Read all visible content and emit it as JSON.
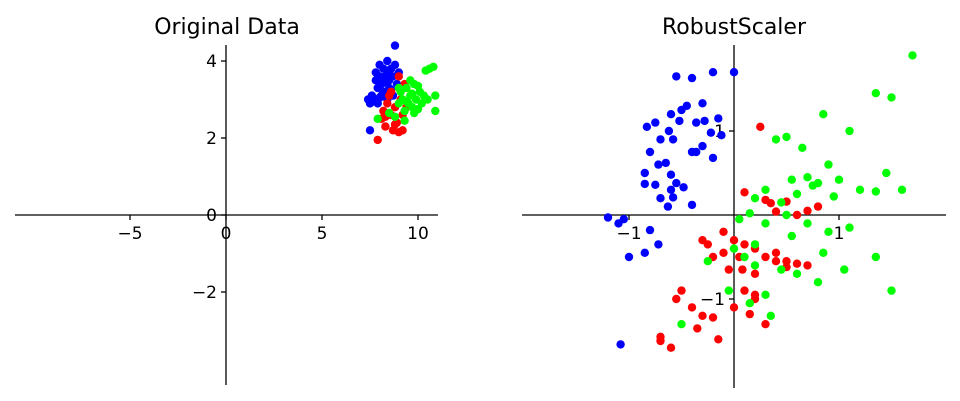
{
  "chart_data": [
    {
      "type": "scatter",
      "title": "Original Data",
      "xlabel": "",
      "ylabel": "",
      "xlim": [
        -10,
        12
      ],
      "ylim": [
        -3.5,
        5.5
      ],
      "xticks": [
        -5,
        0,
        5,
        10
      ],
      "yticks": [
        -2,
        0,
        2,
        4
      ],
      "xtick_labels": [
        "−5",
        "0",
        "5",
        "10"
      ],
      "ytick_labels": [
        "−2",
        "0",
        "2",
        "4"
      ],
      "grid": false,
      "spines": "centered",
      "series": [
        {
          "color": "#0000ff",
          "points": [
            [
              7.4,
              3.0
            ],
            [
              7.5,
              2.9
            ],
            [
              7.6,
              3.1
            ],
            [
              7.8,
              3.7
            ],
            [
              7.8,
              3.5
            ],
            [
              7.9,
              3.3
            ],
            [
              8.0,
              3.6
            ],
            [
              8.0,
              3.9
            ],
            [
              8.1,
              3.4
            ],
            [
              8.1,
              3.1
            ],
            [
              8.2,
              3.8
            ],
            [
              8.2,
              3.2
            ],
            [
              8.3,
              3.6
            ],
            [
              8.4,
              3.0
            ],
            [
              8.4,
              4.0
            ],
            [
              8.5,
              3.5
            ],
            [
              8.5,
              3.3
            ],
            [
              8.6,
              3.8
            ],
            [
              8.7,
              3.1
            ],
            [
              8.7,
              3.6
            ],
            [
              8.8,
              4.4
            ],
            [
              8.8,
              3.9
            ],
            [
              8.9,
              3.4
            ],
            [
              9.0,
              3.7
            ],
            [
              7.5,
              2.2
            ],
            [
              7.7,
              2.95
            ],
            [
              8.0,
              3.05
            ],
            [
              8.3,
              3.45
            ],
            [
              8.6,
              3.25
            ],
            [
              7.9,
              2.9
            ],
            [
              8.2,
              3.55
            ],
            [
              8.45,
              3.75
            ]
          ]
        },
        {
          "color": "#ff0000",
          "points": [
            [
              7.9,
              1.95
            ],
            [
              8.1,
              2.5
            ],
            [
              8.2,
              2.7
            ],
            [
              8.3,
              2.3
            ],
            [
              8.4,
              2.9
            ],
            [
              8.5,
              3.1
            ],
            [
              8.6,
              2.6
            ],
            [
              8.7,
              2.2
            ],
            [
              8.8,
              2.8
            ],
            [
              8.9,
              2.4
            ],
            [
              9.0,
              2.15
            ],
            [
              9.1,
              3.0
            ],
            [
              9.2,
              2.6
            ],
            [
              9.3,
              3.4
            ],
            [
              9.4,
              2.8
            ],
            [
              8.6,
              3.2
            ],
            [
              9.0,
              3.6
            ],
            [
              8.3,
              2.55
            ],
            [
              8.8,
              2.35
            ],
            [
              9.2,
              2.2
            ]
          ]
        },
        {
          "color": "#00ff00",
          "points": [
            [
              7.9,
              2.5
            ],
            [
              8.5,
              2.65
            ],
            [
              8.8,
              2.55
            ],
            [
              9.0,
              2.9
            ],
            [
              9.1,
              3.2
            ],
            [
              9.2,
              3.0
            ],
            [
              9.3,
              2.7
            ],
            [
              9.4,
              3.3
            ],
            [
              9.5,
              2.9
            ],
            [
              9.6,
              3.1
            ],
            [
              9.7,
              2.8
            ],
            [
              9.8,
              3.4
            ],
            [
              9.9,
              3.0
            ],
            [
              10.0,
              2.75
            ],
            [
              10.1,
              3.2
            ],
            [
              10.2,
              2.9
            ],
            [
              10.3,
              3.1
            ],
            [
              10.4,
              3.75
            ],
            [
              10.6,
              3.8
            ],
            [
              10.8,
              3.85
            ],
            [
              10.9,
              3.1
            ],
            [
              10.9,
              2.7
            ],
            [
              9.3,
              2.45
            ],
            [
              9.6,
              3.5
            ],
            [
              9.8,
              2.65
            ],
            [
              10.5,
              3.0
            ],
            [
              9.0,
              3.3
            ],
            [
              9.4,
              2.95
            ],
            [
              9.7,
              3.15
            ],
            [
              10.0,
              3.35
            ]
          ]
        }
      ]
    },
    {
      "type": "scatter",
      "title": "RobustScaler",
      "xlabel": "",
      "ylabel": "",
      "xlim": [
        -2.0,
        2.0
      ],
      "ylim": [
        -2.0,
        2.0
      ],
      "xticks": [
        -1,
        1
      ],
      "yticks": [
        -1,
        1
      ],
      "xtick_labels": [
        "−1",
        "1"
      ],
      "ytick_labels": [
        "−1",
        "1"
      ],
      "grid": false,
      "spines": "centered",
      "series": [
        {
          "color": "#0000ff",
          "points": [
            [
              -0.55,
              1.65
            ],
            [
              -0.4,
              1.63
            ],
            [
              -0.2,
              1.7
            ],
            [
              0.0,
              1.7
            ],
            [
              -0.75,
              1.1
            ],
            [
              -0.6,
              1.2
            ],
            [
              -0.5,
              1.25
            ],
            [
              -0.45,
              1.3
            ],
            [
              -0.3,
              1.33
            ],
            [
              -0.62,
              1.0
            ],
            [
              -0.7,
              0.9
            ],
            [
              -0.58,
              0.9
            ],
            [
              -0.52,
              1.12
            ],
            [
              -0.36,
              1.1
            ],
            [
              -0.28,
              1.12
            ],
            [
              -0.22,
              0.98
            ],
            [
              -0.15,
              1.15
            ],
            [
              -0.12,
              0.95
            ],
            [
              -0.85,
              0.5
            ],
            [
              -0.8,
              0.75
            ],
            [
              -0.72,
              0.6
            ],
            [
              -0.65,
              0.62
            ],
            [
              -0.6,
              0.48
            ],
            [
              -0.55,
              0.38
            ],
            [
              -0.48,
              0.33
            ],
            [
              -0.4,
              0.75
            ],
            [
              -0.36,
              0.75
            ],
            [
              -0.3,
              0.82
            ],
            [
              -0.58,
              0.21
            ],
            [
              -0.63,
              0.1
            ],
            [
              -0.7,
              0.2
            ],
            [
              -0.75,
              0.36
            ],
            [
              -0.85,
              0.37
            ],
            [
              -0.83,
              1.05
            ],
            [
              -0.4,
              0.12
            ],
            [
              -0.6,
              0.3
            ],
            [
              -0.8,
              -0.18
            ],
            [
              -0.72,
              -0.35
            ],
            [
              -0.85,
              -0.45
            ],
            [
              -1.0,
              -0.5
            ],
            [
              -1.05,
              -0.05
            ],
            [
              -1.1,
              -0.1
            ],
            [
              -1.2,
              -0.03
            ],
            [
              -1.08,
              -1.54
            ],
            [
              -0.2,
              0.68
            ]
          ]
        },
        {
          "color": "#ff0000",
          "points": [
            [
              0.25,
              1.05
            ],
            [
              0.1,
              0.27
            ],
            [
              0.3,
              0.18
            ],
            [
              0.35,
              0.14
            ],
            [
              0.5,
              0.16
            ],
            [
              0.4,
              0.04
            ],
            [
              0.6,
              0.0
            ],
            [
              0.7,
              0.05
            ],
            [
              0.8,
              0.1
            ],
            [
              -0.3,
              -0.3
            ],
            [
              -0.1,
              -0.2
            ],
            [
              0.0,
              -0.3
            ],
            [
              0.1,
              -0.35
            ],
            [
              0.2,
              -0.4
            ],
            [
              0.3,
              -0.5
            ],
            [
              0.4,
              -0.45
            ],
            [
              0.5,
              -0.55
            ],
            [
              0.6,
              -0.58
            ],
            [
              0.7,
              -0.6
            ],
            [
              -0.2,
              -0.5
            ],
            [
              -0.05,
              -0.65
            ],
            [
              0.08,
              -0.65
            ],
            [
              0.2,
              -0.7
            ],
            [
              -0.5,
              -0.9
            ],
            [
              -0.55,
              -1.0
            ],
            [
              -0.4,
              -1.1
            ],
            [
              -0.3,
              -1.2
            ],
            [
              -0.35,
              -1.35
            ],
            [
              -0.15,
              -1.48
            ],
            [
              -0.6,
              -1.58
            ],
            [
              -0.7,
              -1.5
            ],
            [
              0.0,
              -1.1
            ],
            [
              0.1,
              -0.9
            ],
            [
              0.2,
              -1.0
            ],
            [
              0.3,
              -1.3
            ],
            [
              0.4,
              -0.55
            ],
            [
              0.5,
              -0.62
            ],
            [
              -0.1,
              -0.45
            ],
            [
              -0.2,
              -1.22
            ],
            [
              0.15,
              -1.18
            ],
            [
              0.05,
              -0.5
            ],
            [
              -0.25,
              -0.35
            ],
            [
              0.2,
              -0.95
            ],
            [
              -0.7,
              -1.45
            ]
          ]
        },
        {
          "color": "#00ff00",
          "points": [
            [
              0.4,
              0.9
            ],
            [
              0.5,
              0.93
            ],
            [
              0.65,
              0.8
            ],
            [
              0.85,
              1.2
            ],
            [
              1.1,
              1.0
            ],
            [
              1.35,
              1.45
            ],
            [
              1.5,
              1.4
            ],
            [
              1.7,
              1.9
            ],
            [
              0.55,
              0.42
            ],
            [
              0.7,
              0.45
            ],
            [
              0.8,
              0.38
            ],
            [
              0.9,
              0.6
            ],
            [
              1.0,
              0.42
            ],
            [
              1.2,
              0.3
            ],
            [
              1.35,
              0.28
            ],
            [
              1.45,
              0.5
            ],
            [
              1.6,
              0.3
            ],
            [
              0.2,
              0.2
            ],
            [
              0.3,
              0.3
            ],
            [
              0.45,
              0.15
            ],
            [
              0.6,
              0.25
            ],
            [
              0.75,
              0.35
            ],
            [
              0.95,
              0.22
            ],
            [
              0.05,
              -0.05
            ],
            [
              0.15,
              0.02
            ],
            [
              0.3,
              -0.1
            ],
            [
              0.5,
              0.0
            ],
            [
              0.7,
              -0.1
            ],
            [
              0.9,
              -0.2
            ],
            [
              1.1,
              -0.15
            ],
            [
              0.0,
              -0.4
            ],
            [
              0.1,
              -0.5
            ],
            [
              0.2,
              -0.6
            ],
            [
              0.45,
              -0.65
            ],
            [
              0.6,
              -0.7
            ],
            [
              0.8,
              -0.8
            ],
            [
              1.05,
              -0.65
            ],
            [
              1.35,
              -0.5
            ],
            [
              1.5,
              -0.9
            ],
            [
              0.3,
              -0.95
            ],
            [
              0.15,
              -1.05
            ],
            [
              -0.05,
              -0.9
            ],
            [
              -0.25,
              -0.55
            ],
            [
              -0.5,
              -1.3
            ],
            [
              0.35,
              -1.2
            ],
            [
              0.2,
              -0.35
            ],
            [
              0.55,
              -0.25
            ],
            [
              0.85,
              -0.45
            ]
          ]
        }
      ]
    }
  ]
}
